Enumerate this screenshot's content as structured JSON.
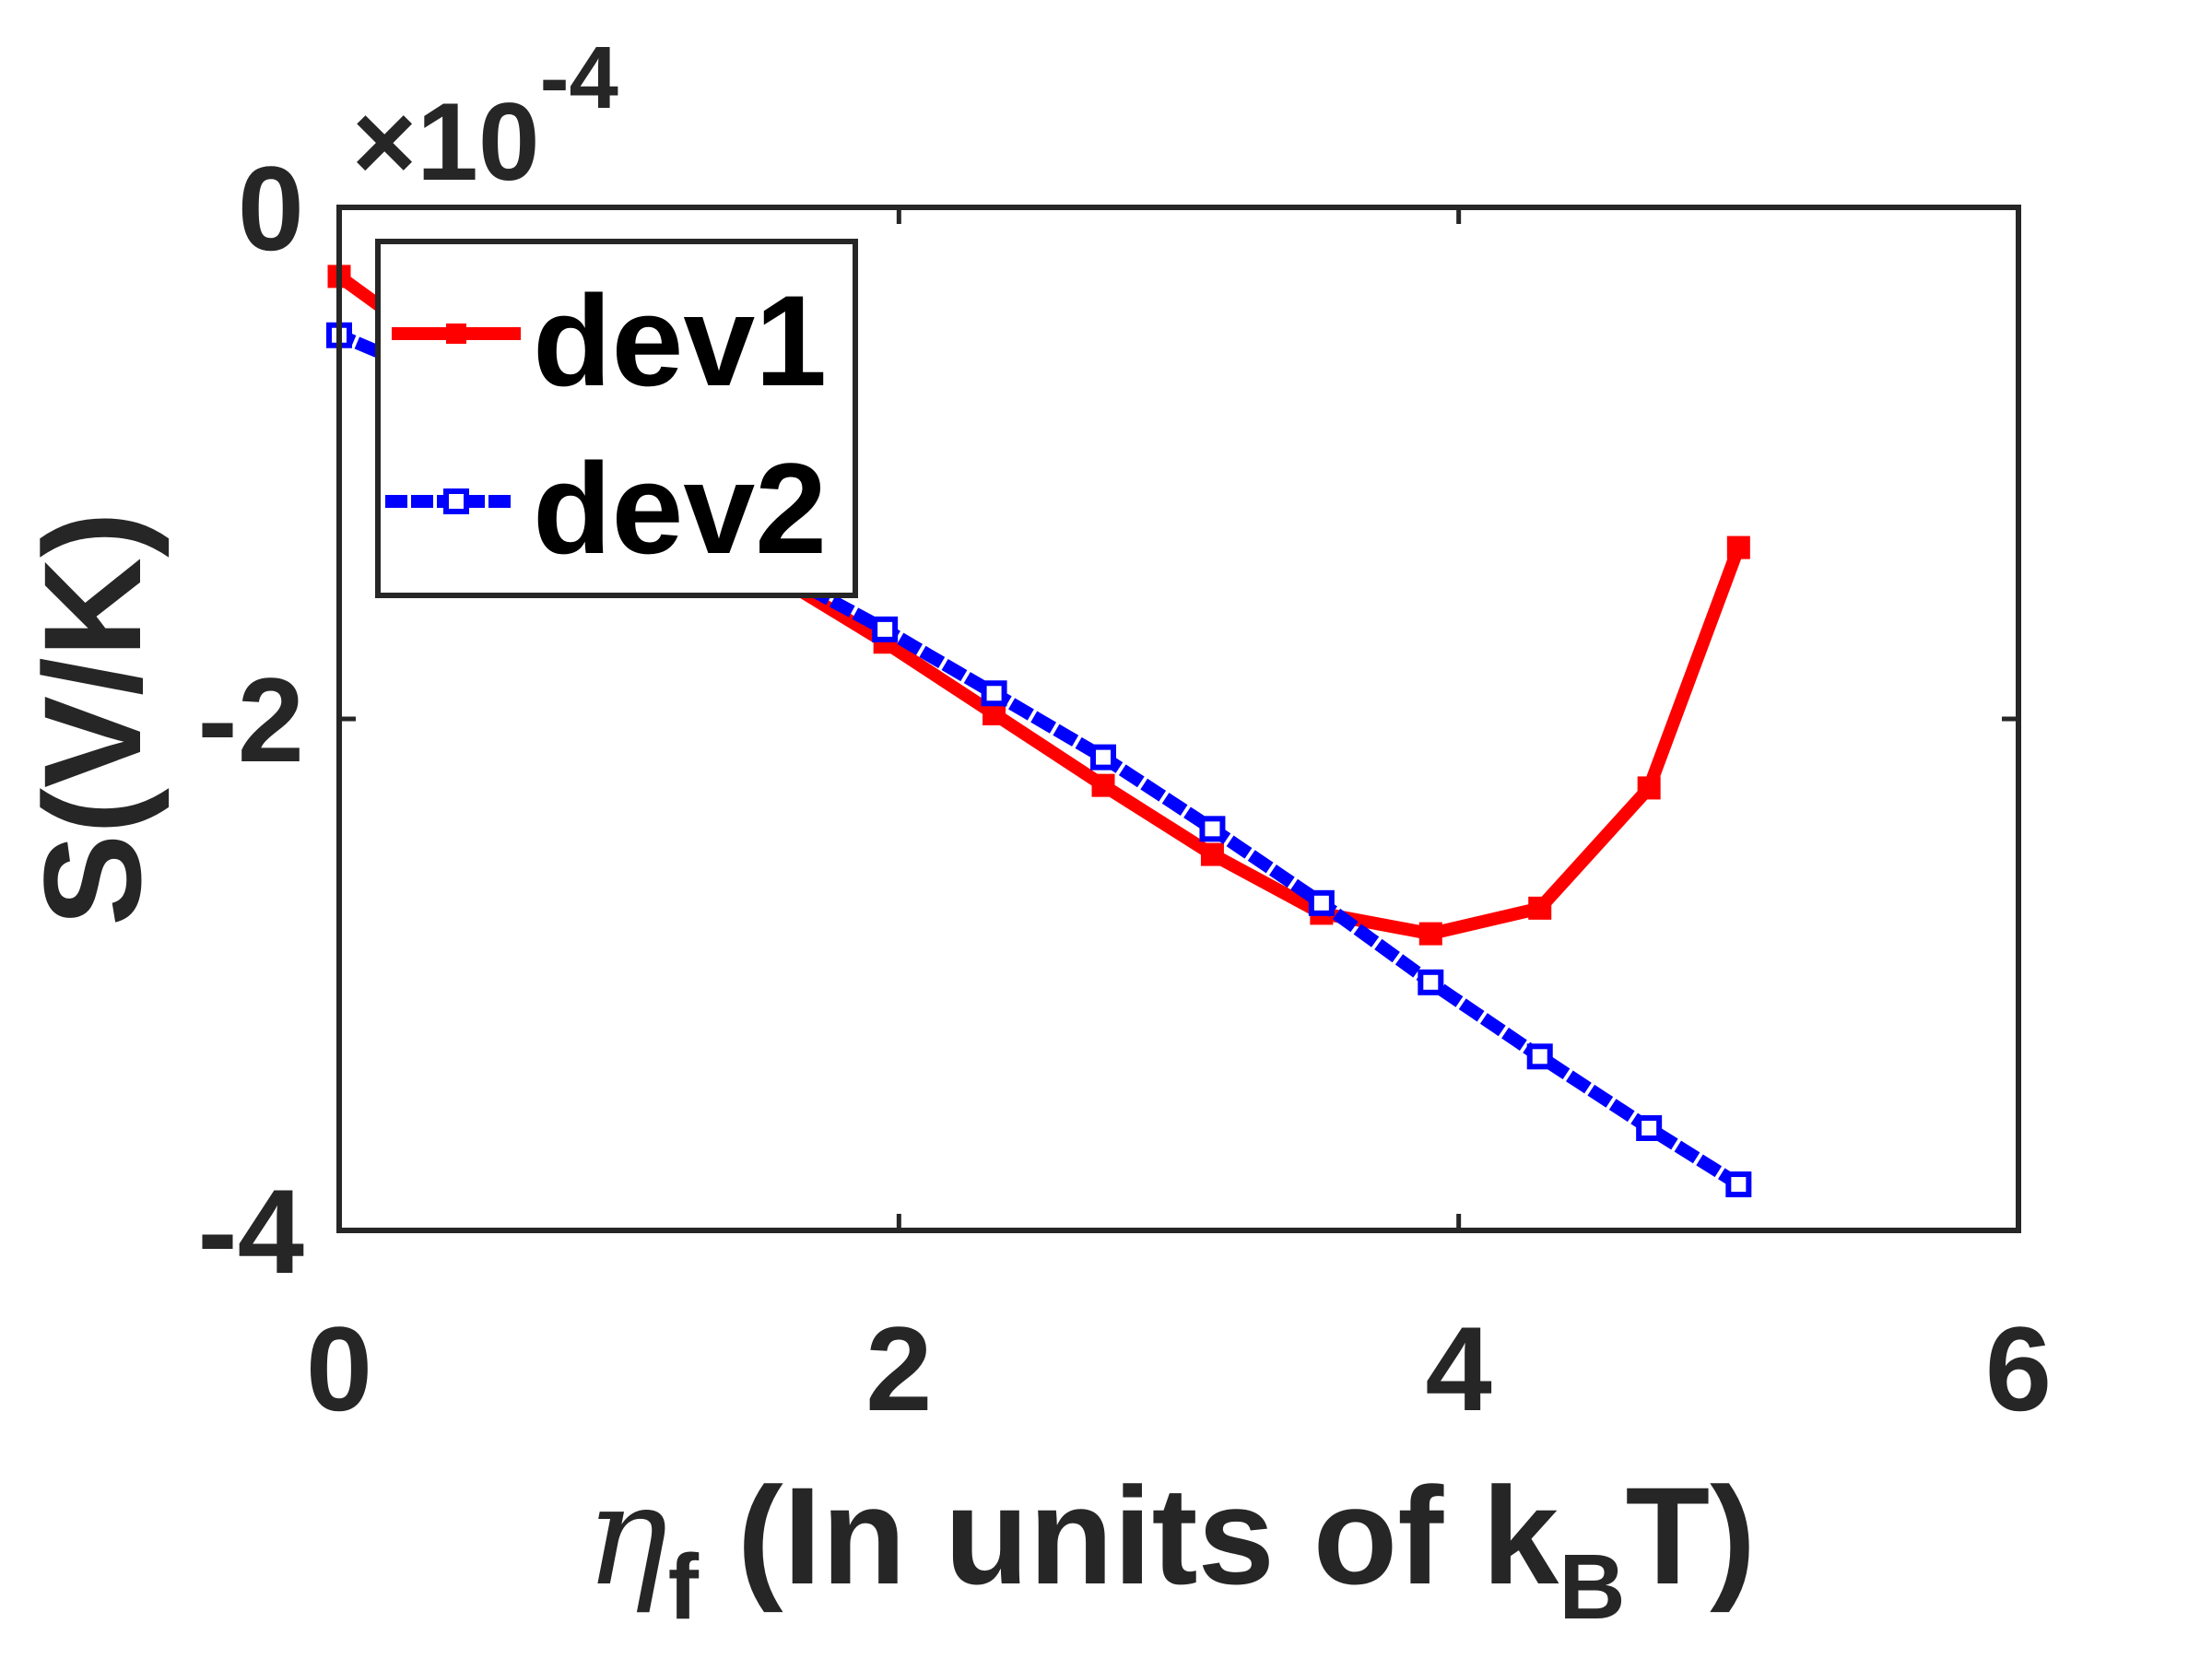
{
  "chart_data": {
    "type": "line",
    "xlabel": {
      "symbol": "η",
      "symbol_sub": "f",
      "text": " (In units of k",
      "text_sub": "B",
      "text_end": "T)"
    },
    "ylabel": "S(V/K)",
    "y_exponent": {
      "prefix": "×10",
      "power": "-4"
    },
    "xlim": [
      0,
      6
    ],
    "ylim": [
      -4,
      0
    ],
    "xticks": [
      0,
      2,
      4,
      6
    ],
    "yticks": [
      -4,
      -2,
      0
    ],
    "xtick_labels": [
      "0",
      "2",
      "4",
      "6"
    ],
    "ytick_labels": [
      "-4",
      "-2",
      "0"
    ],
    "grid": false,
    "legend_position": "top-left",
    "series": [
      {
        "name": "dev1",
        "color": "#ff0000",
        "line_style": "solid",
        "marker": "square",
        "x": [
          0.0,
          0.39,
          0.78,
          1.17,
          1.56,
          1.95,
          2.34,
          2.73,
          3.12,
          3.51,
          3.9,
          4.29,
          4.68,
          5.0
        ],
        "y": [
          -0.27,
          -0.58,
          -0.88,
          -1.17,
          -1.44,
          -1.7,
          -1.98,
          -2.26,
          -2.53,
          -2.76,
          -2.84,
          -2.74,
          -2.27,
          -1.33
        ]
      },
      {
        "name": "dev2",
        "color": "#0000ff",
        "line_style": "dotted",
        "marker": "square",
        "x": [
          0.0,
          0.39,
          0.78,
          1.17,
          1.56,
          1.95,
          2.34,
          2.73,
          3.12,
          3.51,
          3.9,
          4.29,
          4.68,
          5.0
        ],
        "y": [
          -0.5,
          -0.68,
          -0.9,
          -1.15,
          -1.42,
          -1.65,
          -1.9,
          -2.15,
          -2.43,
          -2.72,
          -3.03,
          -3.32,
          -3.6,
          -3.82
        ]
      }
    ]
  }
}
